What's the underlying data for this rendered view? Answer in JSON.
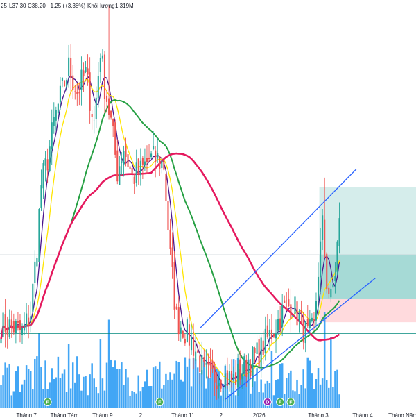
{
  "legend": {
    "open_fragment": "25",
    "low": "L37.30",
    "close": "C38.20",
    "change": "+1.25 (+3.38%)",
    "volume_label": "Khối lượng",
    "volume_value": "1.319M"
  },
  "chart_data": {
    "type": "candlestick",
    "price_range": [
      22,
      56
    ],
    "volume_range": [
      0,
      1.0
    ],
    "x_axis_labels": [
      {
        "index": 12,
        "text": "Tháng 7"
      },
      {
        "index": 30,
        "text": "Tháng Tám"
      },
      {
        "index": 48,
        "text": "Tháng 9"
      },
      {
        "index": 66,
        "text": "2"
      },
      {
        "index": 86,
        "text": "Tháng 11"
      },
      {
        "index": 104,
        "text": "2"
      },
      {
        "index": 122,
        "text": "2026"
      },
      {
        "index": 150,
        "text": "Tháng 3"
      },
      {
        "index": 171,
        "text": "Tháng 4"
      },
      {
        "index": 190,
        "text": "Tháng Năm"
      }
    ],
    "event_markers": [
      {
        "index": 22,
        "letter": "F"
      },
      {
        "index": 75,
        "letter": "F"
      },
      {
        "index": 126,
        "letter": "D"
      },
      {
        "index": 132,
        "letter": "F"
      },
      {
        "index": 137,
        "letter": "F"
      }
    ],
    "price_anchors": [
      [
        0,
        29.5
      ],
      [
        6,
        29.3
      ],
      [
        10,
        28.8
      ],
      [
        14,
        30.5
      ],
      [
        17,
        36
      ],
      [
        19,
        41
      ],
      [
        22,
        43
      ],
      [
        25,
        46
      ],
      [
        28,
        48
      ],
      [
        32,
        50.5
      ],
      [
        36,
        48.5
      ],
      [
        40,
        50
      ],
      [
        44,
        46
      ],
      [
        47,
        52
      ],
      [
        49,
        49
      ],
      [
        52,
        46
      ],
      [
        55,
        42
      ],
      [
        58,
        44
      ],
      [
        62,
        41.5
      ],
      [
        66,
        42
      ],
      [
        70,
        43
      ],
      [
        74,
        43
      ],
      [
        77,
        42.5
      ],
      [
        80,
        35
      ],
      [
        83,
        30
      ],
      [
        87,
        29
      ],
      [
        90,
        28.2
      ],
      [
        93,
        27
      ],
      [
        96,
        25.5
      ],
      [
        99,
        25.2
      ],
      [
        102,
        25.4
      ],
      [
        106,
        25.2
      ],
      [
        110,
        25
      ],
      [
        114,
        25.8
      ],
      [
        118,
        26.5
      ],
      [
        122,
        27.2
      ],
      [
        126,
        28.3
      ],
      [
        130,
        29.5
      ],
      [
        134,
        30.8
      ],
      [
        138,
        31.2
      ],
      [
        142,
        29.5
      ],
      [
        145,
        28.5
      ],
      [
        148,
        29.2
      ],
      [
        150,
        34
      ],
      [
        152,
        37.5
      ],
      [
        154,
        33
      ],
      [
        156,
        31.5
      ],
      [
        158,
        33.8
      ],
      [
        160,
        38.2
      ]
    ],
    "spike_candles": [
      {
        "index": 51,
        "high": 55.5
      },
      {
        "index": 153,
        "high": 41.5
      }
    ],
    "volume_spikes": [
      {
        "index": 18,
        "value": 0.72
      },
      {
        "index": 32,
        "value": 0.62
      },
      {
        "index": 47,
        "value": 0.66
      },
      {
        "index": 51,
        "value": 0.85
      },
      {
        "index": 128,
        "value": 0.55
      },
      {
        "index": 153,
        "value": 0.92
      },
      {
        "index": 156,
        "value": 0.68
      }
    ],
    "moving_averages": [
      {
        "period": 5,
        "color": "#4a148c",
        "width": 1.3
      },
      {
        "period": 10,
        "color": "#ffe500",
        "width": 1.3
      },
      {
        "period": 34,
        "color": "#26a043",
        "width": 2
      },
      {
        "period": 72,
        "color": "#e5195e",
        "width": 2.6
      }
    ],
    "channel_upper": {
      "from": [
        94,
        29.2
      ],
      "to": [
        168,
        42.2
      ]
    },
    "channel_lower": {
      "from": [
        106,
        23.4
      ],
      "to": [
        177,
        33.3
      ]
    },
    "position_tool": {
      "from_index": 151,
      "to_index": 200,
      "entry": 31.6,
      "target": 40.7,
      "stop": 29.7
    },
    "volume_line": 0.72,
    "colors": {
      "candle_up": "#26a69a",
      "candle_down": "#ef5350",
      "volume_bar": "#2196f3",
      "channel": "#2962ff",
      "profit_zone": "#b2dfdb",
      "loss_zone": "#ffcdd2",
      "volume_line": "#00897b",
      "marker_f": "#4caf50",
      "marker_d": "#9c27b0"
    }
  }
}
